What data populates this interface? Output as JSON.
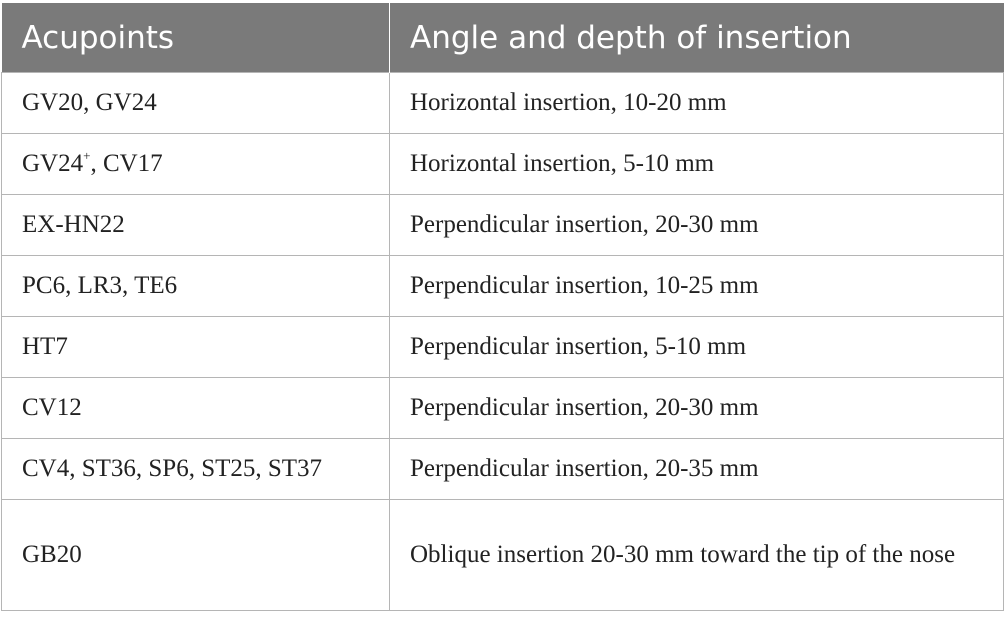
{
  "table": {
    "headers": [
      "Acupoints",
      "Angle and depth of insertion"
    ],
    "rows": [
      {
        "acupoints": "GV20, GV24",
        "insertion": "Horizontal insertion, 10-20 mm"
      },
      {
        "acupoints_main": "GV24",
        "acupoints_sup": "+",
        "acupoints_rest": ", CV17",
        "insertion": "Horizontal insertion, 5-10 mm"
      },
      {
        "acupoints": "EX-HN22",
        "insertion": "Perpendicular insertion, 20-30 mm"
      },
      {
        "acupoints": "PC6, LR3, TE6",
        "insertion": "Perpendicular insertion, 10-25 mm"
      },
      {
        "acupoints": "HT7",
        "insertion": "Perpendicular insertion, 5-10 mm"
      },
      {
        "acupoints": "CV12",
        "insertion": "Perpendicular insertion, 20-30 mm"
      },
      {
        "acupoints": "CV4, ST36, SP6, ST25, ST37",
        "insertion": "Perpendicular insertion, 20-35 mm"
      },
      {
        "acupoints": "GB20",
        "insertion": "Oblique insertion 20-30 mm toward the tip of the nose"
      }
    ]
  }
}
